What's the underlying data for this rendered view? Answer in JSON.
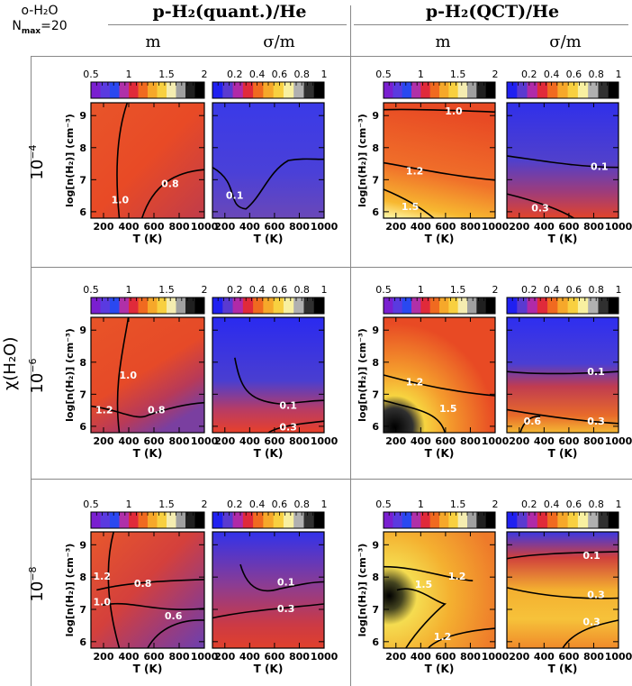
{
  "corner": {
    "line1": "o-H₂O",
    "line2": "N",
    "line2_sub": "max",
    "line2_val": "=20"
  },
  "columns": [
    {
      "title": "p-H₂(quant.)/He",
      "subs": [
        "m",
        "σ/m"
      ]
    },
    {
      "title": "p-H₂(QCT)/He",
      "subs": [
        "m",
        "σ/m"
      ]
    }
  ],
  "row_axis_label": "χ(H₂O)",
  "rows": [
    {
      "label_base": "10",
      "label_exp": "−4"
    },
    {
      "label_base": "10",
      "label_exp": "−6"
    },
    {
      "label_base": "10",
      "label_exp": "−8"
    }
  ],
  "chart_data": {
    "type": "heatmap",
    "xlabel": "T (K)",
    "ylabel": "log[n(H₂)] (cm⁻³)",
    "x_ticks": [
      "200",
      "400",
      "600",
      "800",
      "1000"
    ],
    "y_ticks": [
      "6",
      "7",
      "8",
      "9"
    ],
    "xlim": [
      100,
      1000
    ],
    "ylim": [
      5.8,
      9.4
    ],
    "colorbars": {
      "m": {
        "range": [
          0.5,
          2
        ],
        "ticks": [
          "0.5",
          "1",
          "1.5",
          "2"
        ]
      },
      "sigma_over_m": {
        "range": [
          0,
          1
        ],
        "ticks": [
          "0.2",
          "0.4",
          "0.6",
          "0.8",
          "1"
        ]
      }
    },
    "panels": [
      {
        "row": 0,
        "col": 0,
        "quantity": "m",
        "contour_labels": [
          "1.0",
          "0.8"
        ]
      },
      {
        "row": 0,
        "col": 1,
        "quantity": "sigma_over_m",
        "contour_labels": [
          "0.1"
        ]
      },
      {
        "row": 0,
        "col": 2,
        "quantity": "m",
        "contour_labels": [
          "1.0",
          "1.2",
          "1.5"
        ]
      },
      {
        "row": 0,
        "col": 3,
        "quantity": "sigma_over_m",
        "contour_labels": [
          "0.1",
          "0.3"
        ]
      },
      {
        "row": 1,
        "col": 0,
        "quantity": "m",
        "contour_labels": [
          "1.0",
          "1.2",
          "0.8"
        ]
      },
      {
        "row": 1,
        "col": 1,
        "quantity": "sigma_over_m",
        "contour_labels": [
          "0.1",
          "0.3"
        ]
      },
      {
        "row": 1,
        "col": 2,
        "quantity": "m",
        "contour_labels": [
          "1.2",
          "1.5"
        ]
      },
      {
        "row": 1,
        "col": 3,
        "quantity": "sigma_over_m",
        "contour_labels": [
          "0.1",
          "0.6",
          "0.3"
        ]
      },
      {
        "row": 2,
        "col": 0,
        "quantity": "m",
        "contour_labels": [
          "1.2",
          "0.8",
          "1.0",
          "0.6"
        ]
      },
      {
        "row": 2,
        "col": 1,
        "quantity": "sigma_over_m",
        "contour_labels": [
          "0.1",
          "0.3"
        ]
      },
      {
        "row": 2,
        "col": 2,
        "quantity": "m",
        "contour_labels": [
          "1.2",
          "1.5",
          "1.2"
        ]
      },
      {
        "row": 2,
        "col": 3,
        "quantity": "sigma_over_m",
        "contour_labels": [
          "0.1",
          "0.3",
          "0.3"
        ]
      }
    ]
  }
}
